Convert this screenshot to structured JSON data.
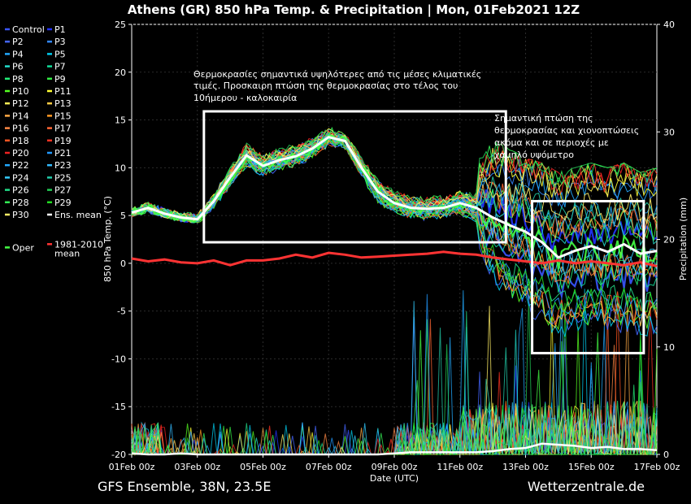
{
  "header": {
    "title": "Athens  (GR)  850 hPa Temp. & Precipitation | Mon, 01Feb2021 12Z"
  },
  "footer": {
    "left": "GFS Ensemble, 38N, 23.5E",
    "right": "Wetterzentrale.de"
  },
  "annotations": [
    {
      "lines": [
        "Θερμοκρασίες σημαντικά υψηλότερες από τις μέσες κλιματικές",
        "τιμές. Προσκαιρη πτώση της θερμοκρασίας στο τέλος του",
        "10ήμερου - καλοκαιρία"
      ]
    },
    {
      "lines": [
        "Σημαντική πτώση της",
        "θερμοκρασίας και χιονοπτώσεις",
        "ακόμα και σε περιοχές με",
        "χαμηλό υψόμετρο"
      ]
    }
  ],
  "highlight_boxes": [
    {
      "x": [
        2.2,
        11.4
      ],
      "y": [
        2.2,
        15.9
      ]
    },
    {
      "x": [
        12.2,
        15.6
      ],
      "y": [
        -9.4,
        6.5
      ]
    }
  ],
  "chart_data": {
    "type": "line",
    "title": "Athens  (GR)  850 hPa Temp. & Precipitation | Mon, 01Feb2021 12Z",
    "xlabel": "Date (UTC)",
    "ylabel": "850 hPa Temp. (°C)",
    "y2label": "Precipitation (mm)",
    "x_range_days": [
      0,
      16
    ],
    "xticks": [
      "01Feb 00z",
      "03Feb 00z",
      "05Feb 00z",
      "07Feb 00z",
      "09Feb 00z",
      "11Feb 00z",
      "13Feb 00z",
      "15Feb 00z",
      "17Feb 00z"
    ],
    "ylim": [
      -20,
      25
    ],
    "yticks": [
      25,
      20,
      15,
      10,
      5,
      0,
      -5,
      -10,
      -15,
      -20
    ],
    "y2lim": [
      0,
      40
    ],
    "y2ticks": [
      40,
      30,
      20,
      10,
      0
    ],
    "legend_placement": "left-outside",
    "legend": [
      {
        "name": "Control",
        "color": "#3a55ff"
      },
      {
        "name": "P1",
        "color": "#2233ff"
      },
      {
        "name": "P2",
        "color": "#4466ff"
      },
      {
        "name": "P3",
        "color": "#3388ff"
      },
      {
        "name": "P4",
        "color": "#22aaff"
      },
      {
        "name": "P5",
        "color": "#00ccee"
      },
      {
        "name": "P6",
        "color": "#22ddcc"
      },
      {
        "name": "P7",
        "color": "#11dd99"
      },
      {
        "name": "P8",
        "color": "#22ee77"
      },
      {
        "name": "P9",
        "color": "#33ee44"
      },
      {
        "name": "P10",
        "color": "#55ff22"
      },
      {
        "name": "P11",
        "color": "#ffff33"
      },
      {
        "name": "P12",
        "color": "#ffee55"
      },
      {
        "name": "P13",
        "color": "#ffcc44"
      },
      {
        "name": "P14",
        "color": "#ffaa44"
      },
      {
        "name": "P15",
        "color": "#ff9922"
      },
      {
        "name": "P16",
        "color": "#ff8844"
      },
      {
        "name": "P17",
        "color": "#ff6633"
      },
      {
        "name": "P18",
        "color": "#ff5522"
      },
      {
        "name": "P19",
        "color": "#ff3322"
      },
      {
        "name": "P20",
        "color": "#ee2222"
      },
      {
        "name": "P21",
        "color": "#2299ff"
      },
      {
        "name": "P22",
        "color": "#22aaff"
      },
      {
        "name": "P23",
        "color": "#33bbff"
      },
      {
        "name": "P24",
        "color": "#33ccff"
      },
      {
        "name": "P25",
        "color": "#22ccaa"
      },
      {
        "name": "P26",
        "color": "#22dd88"
      },
      {
        "name": "P27",
        "color": "#22cc55"
      },
      {
        "name": "P28",
        "color": "#33ee55"
      },
      {
        "name": "P29",
        "color": "#22dd22"
      },
      {
        "name": "P30",
        "color": "#ffee66"
      },
      {
        "name": "Ens. mean",
        "color": "#ffffff"
      },
      {
        "name": "Oper",
        "color": "#44ff44"
      },
      {
        "name": "1981-2010 mean",
        "color": "#ff3333"
      }
    ],
    "series": [
      {
        "name": "Ens. mean",
        "color": "#ffffff",
        "x": [
          0,
          0.5,
          1,
          1.5,
          2,
          2.5,
          3,
          3.5,
          4,
          4.5,
          5,
          5.5,
          6,
          6.5,
          7,
          7.5,
          8,
          8.5,
          9,
          9.5,
          10,
          10.5,
          11,
          11.5,
          12,
          12.5,
          13,
          13.5,
          14,
          14.5,
          15,
          15.5,
          16
        ],
        "y": [
          5.3,
          5.8,
          5.2,
          4.8,
          4.6,
          6.5,
          9.0,
          11.3,
          10.2,
          10.8,
          11.2,
          12.0,
          13.2,
          12.8,
          10.0,
          7.5,
          6.3,
          5.8,
          5.7,
          5.8,
          6.3,
          5.8,
          4.8,
          4.0,
          3.3,
          2.2,
          0.6,
          1.3,
          1.8,
          1.2,
          2.0,
          1.0,
          1.3
        ]
      },
      {
        "name": "1981-2010 mean",
        "color": "#ff3333",
        "x": [
          0,
          0.5,
          1,
          1.5,
          2,
          2.5,
          3,
          3.5,
          4,
          4.5,
          5,
          5.5,
          6,
          6.5,
          7,
          7.5,
          8,
          8.5,
          9,
          9.5,
          10,
          10.5,
          11,
          11.5,
          12,
          12.5,
          13,
          13.5,
          14,
          14.5,
          15,
          15.5,
          16
        ],
        "y": [
          0.5,
          0.2,
          0.4,
          0.1,
          0.0,
          0.3,
          -0.2,
          0.3,
          0.3,
          0.5,
          0.9,
          0.6,
          1.1,
          0.9,
          0.6,
          0.7,
          0.8,
          0.9,
          1.0,
          1.2,
          1.0,
          0.9,
          0.6,
          0.4,
          0.2,
          0.0,
          0.3,
          0.0,
          0.2,
          0.0,
          -0.2,
          0.1,
          -0.3
        ]
      }
    ],
    "ensemble_spread": {
      "x": [
        0,
        0.5,
        1,
        1.5,
        2,
        2.5,
        3,
        3.5,
        4,
        4.5,
        5,
        5.5,
        6,
        6.5,
        7,
        7.5,
        8,
        8.5,
        9,
        9.5,
        10,
        10.5,
        11,
        11.5,
        12,
        12.5,
        13,
        13.5,
        14,
        14.5,
        15,
        15.5,
        16
      ],
      "low": [
        4.9,
        5.3,
        4.8,
        4.4,
        4.2,
        5.0,
        7.0,
        8.5,
        7.5,
        8.2,
        8.5,
        9.5,
        11.0,
        10.8,
        7.5,
        4.5,
        3.0,
        2.7,
        3.0,
        3.2,
        3.3,
        2.5,
        -2.0,
        -4.0,
        -6.0,
        -7.5,
        -8.5,
        -8.0,
        -8.0,
        -7.5,
        -8.5,
        -9.0,
        -9.0
      ],
      "high": [
        5.8,
        6.4,
        5.8,
        5.4,
        5.2,
        8.0,
        11.5,
        14.0,
        12.5,
        13.2,
        13.8,
        14.3,
        14.6,
        14.0,
        12.5,
        10.0,
        8.5,
        7.8,
        8.2,
        8.4,
        9.0,
        10.5,
        13.0,
        12.0,
        11.0,
        10.5,
        9.5,
        10.0,
        10.5,
        10.0,
        10.5,
        9.5,
        10.0
      ]
    },
    "precip_mean": {
      "x": [
        0,
        0.5,
        1,
        1.5,
        2,
        2.5,
        3,
        3.5,
        4,
        4.5,
        5,
        5.5,
        6,
        6.5,
        7,
        7.5,
        8,
        8.5,
        9,
        9.5,
        10,
        10.5,
        11,
        11.5,
        12,
        12.5,
        13,
        13.5,
        14,
        14.5,
        15,
        15.5,
        16
      ],
      "mm": [
        0.1,
        0.0,
        0.0,
        0.1,
        0.0,
        0.0,
        0.0,
        0.0,
        0.0,
        0.0,
        0.0,
        0.0,
        0.0,
        0.0,
        0.0,
        0.0,
        0.1,
        0.2,
        0.2,
        0.2,
        0.2,
        0.2,
        0.3,
        0.5,
        0.6,
        1.0,
        0.9,
        0.8,
        0.6,
        0.7,
        0.5,
        0.5,
        0.4
      ]
    }
  }
}
